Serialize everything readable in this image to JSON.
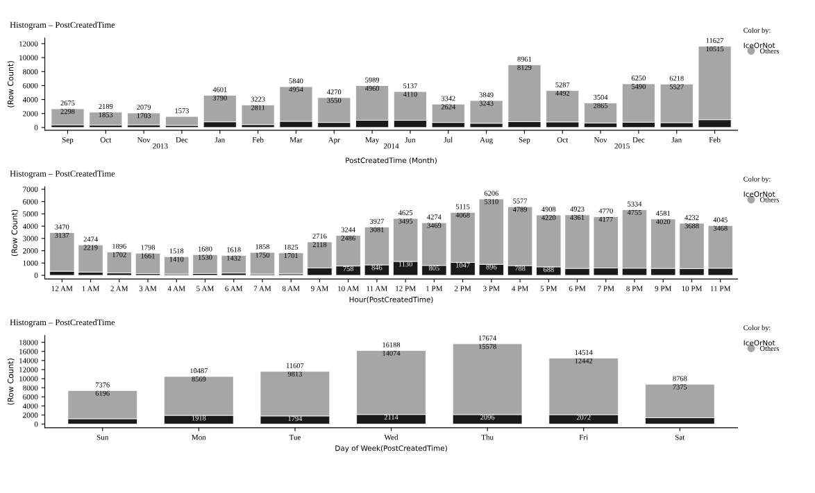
{
  "chart_data": [
    {
      "type": "bar",
      "stacked": true,
      "title": "Histogram – PostCreatedTime",
      "xlabel": "PostCreatedTime (Month)",
      "ylabel": "(Row Count)",
      "legend_title": "Color by:",
      "legend": "top right",
      "grid": false,
      "categories": [
        "Sep",
        "Oct",
        "Nov",
        "Dec",
        "Jan",
        "Feb",
        "Mar",
        "Apr",
        "May",
        "Jun",
        "Jul",
        "Aug",
        "Sep",
        "Oct",
        "Nov",
        "Dec",
        "Jan",
        "Feb"
      ],
      "ylim": [
        -400,
        12800
      ],
      "yticks": [
        0,
        2000,
        4000,
        6000,
        8000,
        10000,
        12000
      ],
      "annotations": [
        "IceOrNot",
        "2013",
        "2014",
        "2015"
      ],
      "series": [
        {
          "color": "#1a1a1a",
          "values": [
            377,
            336,
            376,
            300,
            811,
            412,
            886,
            720,
            1029,
            1027,
            718,
            606,
            832,
            795,
            639,
            760,
            691,
            1112
          ]
        },
        {
          "name": "Others",
          "color": "#a6a6a6",
          "values": [
            2298,
            1853,
            1703,
            1273,
            3790,
            2811,
            4954,
            3550,
            4960,
            4110,
            2624,
            3243,
            8129,
            4492,
            2865,
            5490,
            5527,
            10515
          ],
          "value_labels": [
            "2298",
            "1853",
            "1703",
            null,
            "3790",
            "2811",
            "4954",
            "3550",
            "4960",
            "4110",
            "2624",
            "3243",
            "8129",
            "4492",
            "2865",
            "5490",
            "5527",
            "10515"
          ]
        }
      ],
      "totals": [
        "2675",
        "2189",
        "2079",
        "1573",
        "4601",
        "3223",
        "5840",
        "4270",
        "5989",
        "5137",
        "3342",
        "3849",
        "8961",
        "5287",
        "3504",
        "6250",
        "6218",
        "11627"
      ]
    },
    {
      "type": "bar",
      "stacked": true,
      "title": "Histogram – PostCreatedTime",
      "xlabel": "Hour(PostCreatedTime)",
      "ylabel": "(Row Count)",
      "legend_title": "Color by:",
      "legend": "top right",
      "grid": false,
      "categories": [
        "12 AM",
        "1 AM",
        "2 AM",
        "3 AM",
        "4 AM",
        "5 AM",
        "6 AM",
        "7 AM",
        "8 AM",
        "9 AM",
        "10 AM",
        "11 AM",
        "12 PM",
        "1 PM",
        "2 PM",
        "3 PM",
        "4 PM",
        "5 PM",
        "6 PM",
        "7 PM",
        "8 PM",
        "9 PM",
        "10 PM",
        "11 PM"
      ],
      "ylim": [
        -300,
        7200
      ],
      "yticks": [
        0,
        1000,
        2000,
        3000,
        4000,
        5000,
        6000,
        7000
      ],
      "annotations": [
        "IceOrNot"
      ],
      "series": [
        {
          "color": "#1a1a1a",
          "values": [
            333,
            255,
            194,
            137,
            108,
            150,
            186,
            108,
            124,
            598,
            758,
            846,
            1130,
            805,
            1047,
            896,
            788,
            688,
            562,
            593,
            579,
            561,
            544,
            577
          ],
          "value_labels": [
            null,
            null,
            null,
            null,
            null,
            null,
            null,
            null,
            null,
            null,
            "758",
            "846",
            "1130",
            "805",
            "1047",
            "896",
            "788",
            "688",
            null,
            null,
            null,
            null,
            null,
            null
          ]
        },
        {
          "name": "Others",
          "color": "#a6a6a6",
          "values": [
            3137,
            2219,
            1702,
            1661,
            1410,
            1530,
            1432,
            1750,
            1701,
            2118,
            2486,
            3081,
            3495,
            3469,
            4068,
            5310,
            4789,
            4220,
            4361,
            4177,
            4755,
            4020,
            3688,
            3468
          ],
          "value_labels": [
            "3137",
            "2219",
            "1702",
            "1661",
            "1410",
            "1530",
            "1432",
            "1750",
            "1701",
            "2118",
            "2486",
            "3081",
            "3495",
            "3469",
            "4068",
            "5310",
            "4789",
            "4220",
            "4361",
            "4177",
            "4755",
            "4020",
            "3688",
            "3468"
          ]
        }
      ],
      "totals": [
        "3470",
        "2474",
        "1896",
        "1798",
        "1518",
        "1680",
        "1618",
        "1858",
        "1825",
        "2716",
        "3244",
        "3927",
        "4625",
        "4274",
        "5115",
        "6206",
        "5577",
        "4908",
        "4923",
        "4770",
        "5334",
        "4581",
        "4232",
        "4045"
      ]
    },
    {
      "type": "bar",
      "stacked": true,
      "title": "Histogram – PostCreatedTime",
      "xlabel": "Day of Week(PostCreatedTime)",
      "ylabel": "(Row Count)",
      "legend_title": "Color by:",
      "legend": "top right",
      "grid": false,
      "categories": [
        "Sun",
        "Mon",
        "Tue",
        "Wed",
        "Thu",
        "Fri",
        "Sat"
      ],
      "ylim": [
        -800,
        19500
      ],
      "yticks": [
        0,
        2000,
        4000,
        6000,
        8000,
        10000,
        12000,
        14000,
        16000,
        18000
      ],
      "annotations": [
        "IceOrNot"
      ],
      "series": [
        {
          "color": "#1a1a1a",
          "values": [
            1180,
            1918,
            1794,
            2114,
            2096,
            2072,
            1393
          ],
          "value_labels": [
            null,
            "1918",
            "1794",
            "2114",
            "2096",
            "2072",
            null
          ]
        },
        {
          "name": "Others",
          "color": "#a6a6a6",
          "values": [
            6196,
            8569,
            9813,
            14074,
            15578,
            12442,
            7375
          ],
          "value_labels": [
            "6196",
            "8569",
            "9813",
            "14074",
            "15578",
            "12442",
            "7375"
          ]
        }
      ],
      "totals": [
        "7376",
        "10487",
        "11607",
        "16188",
        "17674",
        "14514",
        "8768"
      ]
    }
  ]
}
